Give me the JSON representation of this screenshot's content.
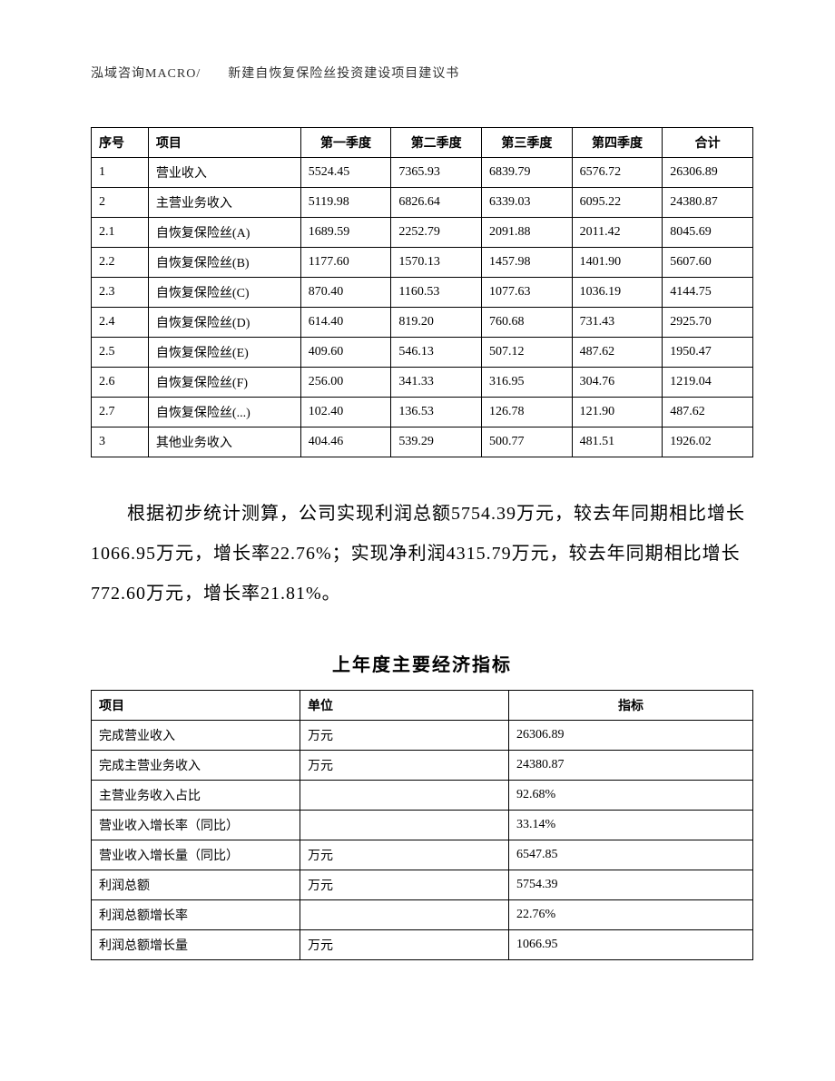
{
  "header": "泓域咨询MACRO/　　新建自恢复保险丝投资建设项目建议书",
  "table1": {
    "headers": [
      "序号",
      "项目",
      "第一季度",
      "第二季度",
      "第三季度",
      "第四季度",
      "合计"
    ],
    "rows": [
      [
        "1",
        "营业收入",
        "5524.45",
        "7365.93",
        "6839.79",
        "6576.72",
        "26306.89"
      ],
      [
        "2",
        "主营业务收入",
        "5119.98",
        "6826.64",
        "6339.03",
        "6095.22",
        "24380.87"
      ],
      [
        "2.1",
        "自恢复保险丝(A)",
        "1689.59",
        "2252.79",
        "2091.88",
        "2011.42",
        "8045.69"
      ],
      [
        "2.2",
        "自恢复保险丝(B)",
        "1177.60",
        "1570.13",
        "1457.98",
        "1401.90",
        "5607.60"
      ],
      [
        "2.3",
        "自恢复保险丝(C)",
        "870.40",
        "1160.53",
        "1077.63",
        "1036.19",
        "4144.75"
      ],
      [
        "2.4",
        "自恢复保险丝(D)",
        "614.40",
        "819.20",
        "760.68",
        "731.43",
        "2925.70"
      ],
      [
        "2.5",
        "自恢复保险丝(E)",
        "409.60",
        "546.13",
        "507.12",
        "487.62",
        "1950.47"
      ],
      [
        "2.6",
        "自恢复保险丝(F)",
        "256.00",
        "341.33",
        "316.95",
        "304.76",
        "1219.04"
      ],
      [
        "2.7",
        "自恢复保险丝(...)",
        "102.40",
        "136.53",
        "126.78",
        "121.90",
        "487.62"
      ],
      [
        "3",
        "其他业务收入",
        "404.46",
        "539.29",
        "500.77",
        "481.51",
        "1926.02"
      ]
    ]
  },
  "body_text": "根据初步统计测算，公司实现利润总额5754.39万元，较去年同期相比增长1066.95万元，增长率22.76%；实现净利润4315.79万元，较去年同期相比增长772.60万元，增长率21.81%。",
  "section_title": "上年度主要经济指标",
  "table2": {
    "headers": [
      "项目",
      "单位",
      "指标"
    ],
    "rows": [
      [
        "完成营业收入",
        "万元",
        "26306.89"
      ],
      [
        "完成主营业务收入",
        "万元",
        "24380.87"
      ],
      [
        "主营业务收入占比",
        "",
        "92.68%"
      ],
      [
        "营业收入增长率（同比）",
        "",
        "33.14%"
      ],
      [
        "营业收入增长量（同比）",
        "万元",
        "6547.85"
      ],
      [
        "利润总额",
        "万元",
        "5754.39"
      ],
      [
        "利润总额增长率",
        "",
        "22.76%"
      ],
      [
        "利润总额增长量",
        "万元",
        "1066.95"
      ]
    ]
  }
}
